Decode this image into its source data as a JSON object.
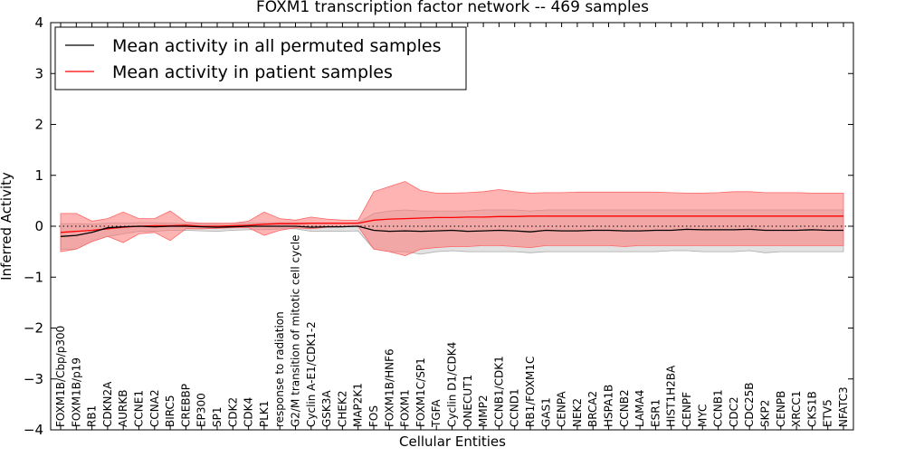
{
  "chart_data": {
    "type": "line",
    "title": "FOXM1 transcription factor network -- 469 samples",
    "xlabel": "Cellular Entities",
    "ylabel": "Inferred Activity",
    "ylim": [
      -4,
      4
    ],
    "yticks": [
      -4,
      -3,
      -2,
      -1,
      0,
      1,
      2,
      3,
      4
    ],
    "ytick_labels": [
      "−4",
      "−3",
      "−2",
      "−1",
      "0",
      "1",
      "2",
      "3",
      "4"
    ],
    "grid": false,
    "legend_position": "top-left",
    "zero_line": "dotted",
    "categories": [
      "FOXM1B/Cbp/p300",
      "FOXM1B/p19",
      "RB1",
      "CDKN2A",
      "AURKB",
      "CCNE1",
      "CCNA2",
      "BIRC5",
      "CREBBP",
      "EP300",
      "SP1",
      "CDK2",
      "CDK4",
      "PLK1",
      "response to radiation",
      "G2/M transition of mitotic cell cycle",
      "Cyclin A-E1/CDK1-2",
      "GSK3A",
      "CHEK2",
      "MAP2K1",
      "FOS",
      "FOXM1B/HNF6",
      "FOXM1",
      "FOXM1C/SP1",
      "TGFA",
      "Cyclin D1/CDK4",
      "ONECUT1",
      "MMP2",
      "CCNB1/CDK1",
      "CCND1",
      "RB1/FOXM1C",
      "GAS1",
      "CENPA",
      "NEK2",
      "BRCA2",
      "HSPA1B",
      "CCNB2",
      "LAMA4",
      "ESR1",
      "HIST1H2BA",
      "CENPF",
      "MYC",
      "CCNB1",
      "CDC2",
      "CDC25B",
      "SKP2",
      "CENPB",
      "XRCC1",
      "CKS1B",
      "ETV5",
      "NFATC3"
    ],
    "series": [
      {
        "name": "Mean activity in all permuted samples",
        "color": "#000000",
        "values": [
          -0.2,
          -0.18,
          -0.12,
          -0.03,
          -0.01,
          0.0,
          -0.01,
          0.0,
          0.0,
          -0.01,
          -0.02,
          -0.01,
          0.0,
          0.0,
          0.0,
          0.0,
          -0.02,
          -0.01,
          -0.01,
          0.0,
          -0.08,
          -0.1,
          -0.09,
          -0.1,
          -0.09,
          -0.08,
          -0.1,
          -0.09,
          -0.08,
          -0.09,
          -0.11,
          -0.08,
          -0.09,
          -0.09,
          -0.08,
          -0.08,
          -0.09,
          -0.09,
          -0.08,
          -0.08,
          -0.06,
          -0.07,
          -0.07,
          -0.07,
          -0.06,
          -0.08,
          -0.08,
          -0.08,
          -0.07,
          -0.08,
          -0.08
        ],
        "band_lower": [
          -0.45,
          -0.45,
          -0.3,
          -0.2,
          -0.15,
          -0.1,
          -0.1,
          -0.08,
          -0.08,
          -0.09,
          -0.1,
          -0.08,
          -0.07,
          -0.07,
          -0.05,
          -0.05,
          -0.1,
          -0.1,
          -0.1,
          -0.09,
          -0.45,
          -0.5,
          -0.5,
          -0.55,
          -0.5,
          -0.48,
          -0.5,
          -0.5,
          -0.5,
          -0.5,
          -0.52,
          -0.5,
          -0.5,
          -0.5,
          -0.5,
          -0.5,
          -0.5,
          -0.5,
          -0.5,
          -0.48,
          -0.48,
          -0.5,
          -0.5,
          -0.5,
          -0.48,
          -0.52,
          -0.5,
          -0.5,
          -0.5,
          -0.5,
          -0.5
        ],
        "band_upper": [
          0.05,
          0.05,
          0.04,
          0.06,
          0.06,
          0.07,
          0.07,
          0.06,
          0.05,
          0.05,
          0.05,
          0.06,
          0.06,
          0.07,
          0.07,
          0.07,
          0.06,
          0.06,
          0.06,
          0.07,
          0.25,
          0.3,
          0.32,
          0.3,
          0.3,
          0.3,
          0.3,
          0.32,
          0.32,
          0.32,
          0.3,
          0.32,
          0.32,
          0.32,
          0.32,
          0.32,
          0.32,
          0.32,
          0.32,
          0.32,
          0.32,
          0.32,
          0.32,
          0.32,
          0.32,
          0.32,
          0.32,
          0.32,
          0.32,
          0.32,
          0.32
        ]
      },
      {
        "name": "Mean activity in patient samples",
        "color": "#ff0000",
        "values": [
          -0.12,
          -0.1,
          -0.08,
          -0.05,
          -0.02,
          0.0,
          0.01,
          0.01,
          0.02,
          0.0,
          0.0,
          0.01,
          0.02,
          0.04,
          0.05,
          0.05,
          0.06,
          0.06,
          0.06,
          0.06,
          0.12,
          0.14,
          0.15,
          0.16,
          0.17,
          0.17,
          0.18,
          0.18,
          0.19,
          0.19,
          0.2,
          0.2,
          0.2,
          0.2,
          0.2,
          0.2,
          0.2,
          0.2,
          0.2,
          0.2,
          0.2,
          0.2,
          0.2,
          0.2,
          0.2,
          0.2,
          0.2,
          0.2,
          0.2,
          0.2,
          0.2
        ],
        "band_lower": [
          -0.5,
          -0.45,
          -0.3,
          -0.2,
          -0.32,
          -0.15,
          -0.12,
          -0.28,
          -0.05,
          -0.05,
          -0.04,
          -0.03,
          -0.03,
          -0.18,
          -0.08,
          -0.03,
          -0.05,
          -0.02,
          -0.01,
          0.0,
          -0.45,
          -0.5,
          -0.58,
          -0.45,
          -0.42,
          -0.4,
          -0.4,
          -0.38,
          -0.38,
          -0.4,
          -0.42,
          -0.38,
          -0.38,
          -0.38,
          -0.38,
          -0.38,
          -0.4,
          -0.38,
          -0.38,
          -0.38,
          -0.38,
          -0.38,
          -0.38,
          -0.38,
          -0.38,
          -0.38,
          -0.38,
          -0.38,
          -0.38,
          -0.38,
          -0.38
        ],
        "band_upper": [
          0.25,
          0.25,
          0.1,
          0.15,
          0.28,
          0.15,
          0.15,
          0.3,
          0.08,
          0.06,
          0.06,
          0.06,
          0.1,
          0.28,
          0.15,
          0.12,
          0.18,
          0.14,
          0.12,
          0.12,
          0.68,
          0.78,
          0.88,
          0.7,
          0.65,
          0.65,
          0.66,
          0.68,
          0.72,
          0.68,
          0.65,
          0.66,
          0.66,
          0.67,
          0.67,
          0.67,
          0.67,
          0.67,
          0.67,
          0.66,
          0.65,
          0.65,
          0.66,
          0.68,
          0.68,
          0.66,
          0.66,
          0.66,
          0.65,
          0.65,
          0.65
        ]
      }
    ]
  }
}
